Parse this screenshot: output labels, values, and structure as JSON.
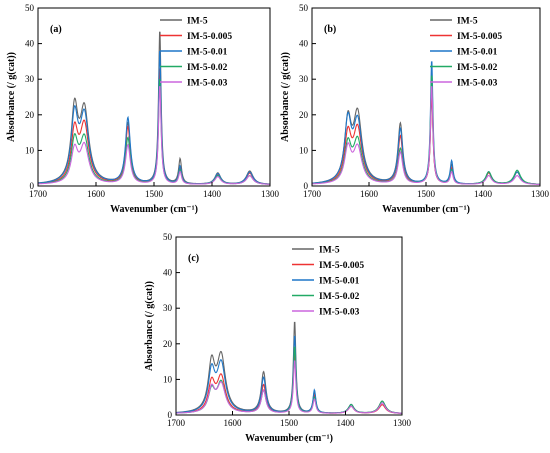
{
  "chart_data": [
    {
      "type": "line",
      "panel_label": "(a)",
      "xlabel": "Wavenumber (cm⁻¹)",
      "ylabel": "Absorbance (/ g(cat))",
      "xlim": [
        1700,
        1300
      ],
      "xaxis_reversed": true,
      "ylim": [
        0,
        50
      ],
      "xticks": [
        1700,
        1600,
        1500,
        1400,
        1300
      ],
      "yticks": [
        0,
        10,
        20,
        30,
        40,
        50
      ],
      "legend_position": "top-right",
      "grid": false,
      "series": [
        {
          "name": "IM-5",
          "color": "#666666",
          "peaks": {
            "1637": 19.8,
            "1620": 20.0,
            "1545": 17.0,
            "1490": 43.5,
            "1455": 7.0,
            "1390": 3.2,
            "1335": 3.8
          }
        },
        {
          "name": "IM-5-0.005",
          "color": "#ee3333",
          "peaks": {
            "1637": 14.0,
            "1620": 16.0,
            "1545": 16.0,
            "1490": 33.0,
            "1455": 4.5,
            "1390": 2.8,
            "1335": 3.2
          }
        },
        {
          "name": "IM-5-0.01",
          "color": "#1f77c8",
          "peaks": {
            "1637": 18.0,
            "1620": 18.5,
            "1545": 18.5,
            "1490": 38.0,
            "1455": 5.0,
            "1390": 3.0,
            "1335": 3.5
          }
        },
        {
          "name": "IM-5-0.02",
          "color": "#22aa66",
          "peaks": {
            "1637": 11.5,
            "1620": 12.5,
            "1545": 13.0,
            "1490": 30.0,
            "1455": 4.0,
            "1390": 2.5,
            "1335": 2.5
          }
        },
        {
          "name": "IM-5-0.03",
          "color": "#cc66dd",
          "peaks": {
            "1637": 9.0,
            "1620": 10.5,
            "1545": 11.0,
            "1490": 28.0,
            "1455": 3.5,
            "1390": 2.2,
            "1335": 2.5
          }
        }
      ]
    },
    {
      "type": "line",
      "panel_label": "(b)",
      "xlabel": "Wavenumber (cm⁻¹)",
      "ylabel": "Absorbance (/ g(cat))",
      "xlim": [
        1700,
        1300
      ],
      "xaxis_reversed": true,
      "ylim": [
        0,
        50
      ],
      "xticks": [
        1700,
        1600,
        1500,
        1400,
        1300
      ],
      "yticks": [
        0,
        10,
        20,
        30,
        40,
        50
      ],
      "legend_position": "top-right",
      "grid": false,
      "series": [
        {
          "name": "IM-5",
          "color": "#666666",
          "peaks": {
            "1637": 16.5,
            "1620": 19.0,
            "1545": 17.0,
            "1490": 25.0,
            "1455": 5.5,
            "1390": 3.5,
            "1340": 3.5
          }
        },
        {
          "name": "IM-5-0.005",
          "color": "#ee3333",
          "peaks": {
            "1637": 13.0,
            "1620": 15.0,
            "1545": 13.5,
            "1490": 26.0,
            "1455": 4.5,
            "1390": 3.2,
            "1340": 3.5
          }
        },
        {
          "name": "IM-5-0.01",
          "color": "#1f77c8",
          "peaks": {
            "1637": 16.5,
            "1620": 17.0,
            "1545": 15.5,
            "1490": 35.0,
            "1455": 6.5,
            "1390": 3.5,
            "1340": 3.5
          }
        },
        {
          "name": "IM-5-0.02",
          "color": "#22aa66",
          "peaks": {
            "1637": 10.5,
            "1620": 12.0,
            "1545": 10.0,
            "1490": 31.0,
            "1455": 4.0,
            "1390": 3.5,
            "1340": 4.0
          }
        },
        {
          "name": "IM-5-0.03",
          "color": "#cc66dd",
          "peaks": {
            "1637": 9.5,
            "1620": 10.0,
            "1545": 9.0,
            "1490": 28.0,
            "1455": 3.5,
            "1390": 2.5,
            "1340": 2.5
          }
        }
      ]
    },
    {
      "type": "line",
      "panel_label": "(c)",
      "xlabel": "Wavenumber (cm⁻¹)",
      "ylabel": "Absorbance (/ g(cat))",
      "xlim": [
        1700,
        1300
      ],
      "xaxis_reversed": true,
      "ylim": [
        0,
        50
      ],
      "xticks": [
        1700,
        1600,
        1500,
        1400,
        1300
      ],
      "yticks": [
        0,
        10,
        20,
        30,
        40,
        50
      ],
      "legend_position": "top-right",
      "grid": false,
      "series": [
        {
          "name": "IM-5",
          "color": "#666666",
          "peaks": {
            "1637": 13.0,
            "1620": 15.5,
            "1545": 11.5,
            "1490": 26.0,
            "1455": 6.0,
            "1390": 2.5,
            "1335": 3.5
          }
        },
        {
          "name": "IM-5-0.005",
          "color": "#ee3333",
          "peaks": {
            "1637": 8.0,
            "1620": 10.0,
            "1545": 8.0,
            "1490": 17.0,
            "1455": 5.0,
            "1390": 2.0,
            "1335": 2.5
          }
        },
        {
          "name": "IM-5-0.01",
          "color": "#1f77c8",
          "peaks": {
            "1637": 11.0,
            "1620": 13.5,
            "1545": 10.0,
            "1490": 22.0,
            "1455": 6.5,
            "1390": 2.5,
            "1335": 3.0
          }
        },
        {
          "name": "IM-5-0.02",
          "color": "#22aa66",
          "peaks": {
            "1637": 6.0,
            "1620": 8.5,
            "1545": 6.5,
            "1490": 19.0,
            "1455": 4.5,
            "1390": 2.5,
            "1335": 3.5
          }
        },
        {
          "name": "IM-5-0.03",
          "color": "#cc66dd",
          "peaks": {
            "1637": 6.5,
            "1620": 8.0,
            "1545": 6.5,
            "1490": 15.0,
            "1455": 4.0,
            "1390": 2.0,
            "1335": 3.0
          }
        }
      ]
    }
  ]
}
